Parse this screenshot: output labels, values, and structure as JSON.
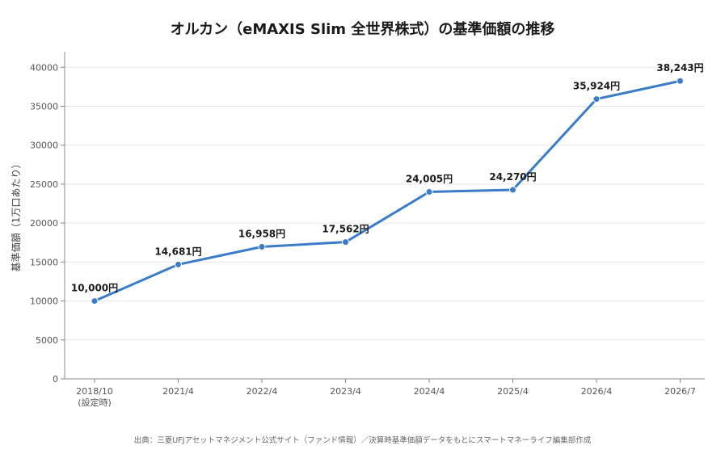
{
  "chart_data": {
    "type": "line",
    "title": "オルカン（eMAXIS Slim 全世界株式）の基準価額の推移",
    "ylabel": "基準価額（1万口あたり）",
    "xlabel": "",
    "categories": [
      [
        "2018/10",
        "(設定時)"
      ],
      [
        "2021/4"
      ],
      [
        "2022/4"
      ],
      [
        "2023/4"
      ],
      [
        "2024/4"
      ],
      [
        "2025/4"
      ],
      [
        "2026/4"
      ],
      [
        "2026/7"
      ]
    ],
    "series": [
      {
        "values": [
          10000,
          14681,
          16958,
          17562,
          24005,
          24270,
          35924,
          38243
        ],
        "labels": [
          "10,000円",
          "14,681円",
          "16,958円",
          "17,562円",
          "24,005円",
          "24,270円",
          "35,924円",
          "38,243円"
        ],
        "color": "#3a7cc7"
      }
    ],
    "ylim": [
      0,
      42000
    ],
    "yticks": [
      0,
      5000,
      10000,
      15000,
      20000,
      25000,
      30000,
      35000,
      40000
    ],
    "grid": true,
    "legend": "none"
  },
  "source": "出典：三菱UFJアセットマネジメント公式サイト（ファンド情報）／決算時基準価額データをもとにスマートマネーライフ編集部作成"
}
